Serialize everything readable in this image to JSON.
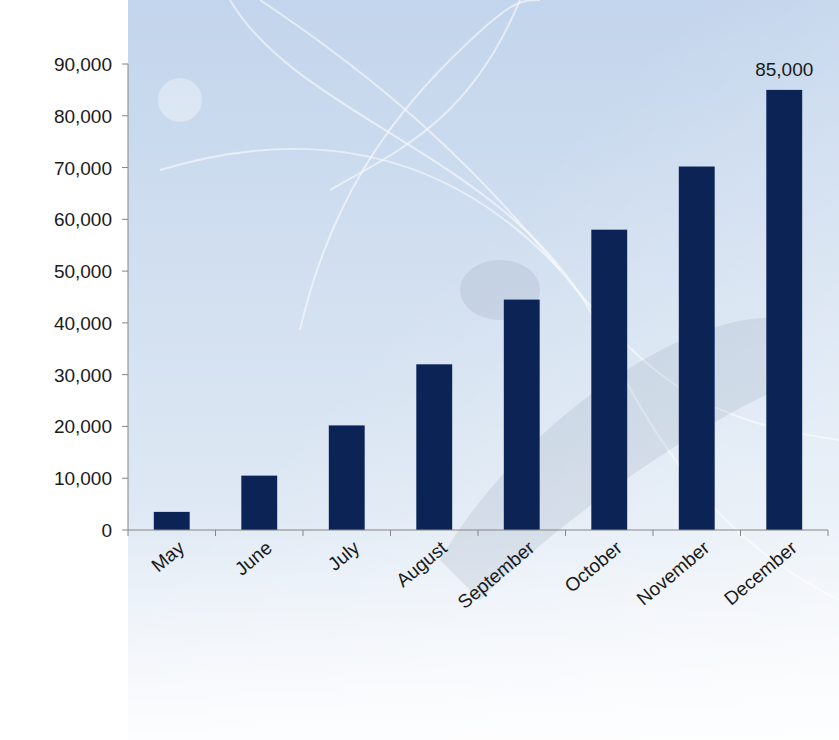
{
  "chart_data": {
    "type": "bar",
    "categories": [
      "May",
      "June",
      "July",
      "August",
      "September",
      "October",
      "November",
      "December"
    ],
    "values": [
      3500,
      10500,
      20200,
      32000,
      44500,
      58000,
      70200,
      85000
    ],
    "value_labels": [
      null,
      null,
      null,
      null,
      null,
      null,
      null,
      "85,000"
    ],
    "data_labels": true,
    "color": "#0c2356",
    "ylim": [
      0,
      90000
    ],
    "yticks": [
      0,
      {
        "value": 10000,
        "label": "10,000"
      },
      {
        "value": 20000,
        "label": "20,000"
      },
      {
        "value": 30000,
        "label": "30,000"
      },
      {
        "value": 40000,
        "label": "40,000"
      },
      {
        "value": 50000,
        "label": "50,000"
      },
      {
        "value": 60000,
        "label": "60,000"
      },
      {
        "value": 70000,
        "label": "70,000"
      },
      {
        "value": 80000,
        "label": "80,000"
      },
      {
        "value": 90000,
        "label": "90,000"
      }
    ],
    "grid": false
  }
}
